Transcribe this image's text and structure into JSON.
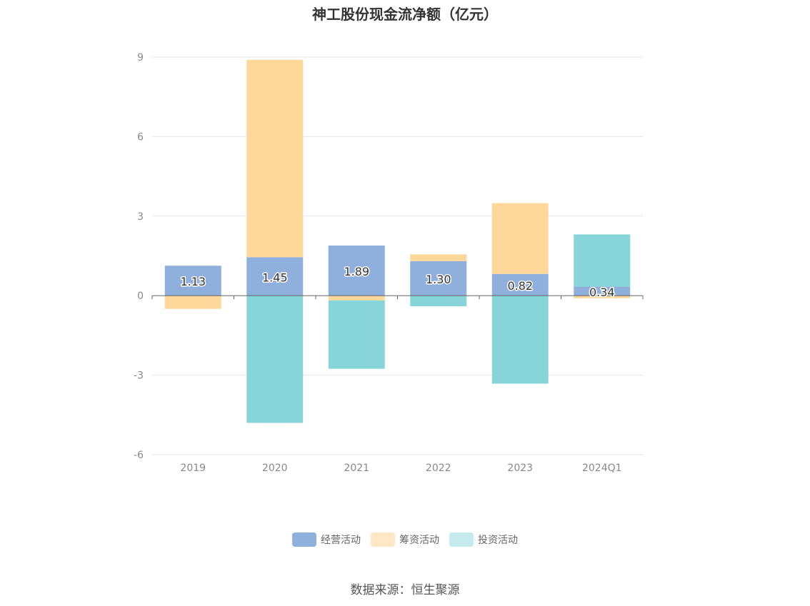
{
  "chart_data": {
    "type": "bar",
    "stacked": true,
    "title": "神工股份现金流净额（亿元）",
    "categories": [
      "2019",
      "2020",
      "2021",
      "2022",
      "2023",
      "2024Q1"
    ],
    "series": [
      {
        "name": "经营活动",
        "color": "#8fb0dd",
        "values": [
          1.13,
          1.45,
          1.89,
          1.3,
          0.82,
          0.34
        ]
      },
      {
        "name": "筹资活动",
        "color": "#fed89b",
        "values": [
          -0.5,
          7.45,
          -0.18,
          0.26,
          2.67,
          -0.1
        ]
      },
      {
        "name": "投资活动",
        "color": "#87d5d9",
        "values": [
          0.0,
          -4.8,
          -2.58,
          -0.4,
          -3.32,
          1.97
        ]
      }
    ],
    "data_labels": [
      "1.13",
      "1.45",
      "1.89",
      "1.30",
      "0.82",
      "0.34"
    ],
    "legend_colors": [
      "#8fb0dd",
      "#fee8c6",
      "#c4eaec"
    ],
    "ylim": [
      -6,
      9
    ],
    "yticks": [
      9,
      6,
      3,
      0,
      -3,
      -6
    ],
    "ytick_labels": [
      "9",
      "6",
      "3",
      "0",
      "-3",
      "-6"
    ],
    "legend_position": "bottom",
    "grid": true
  },
  "source": "数据来源：恒生聚源"
}
